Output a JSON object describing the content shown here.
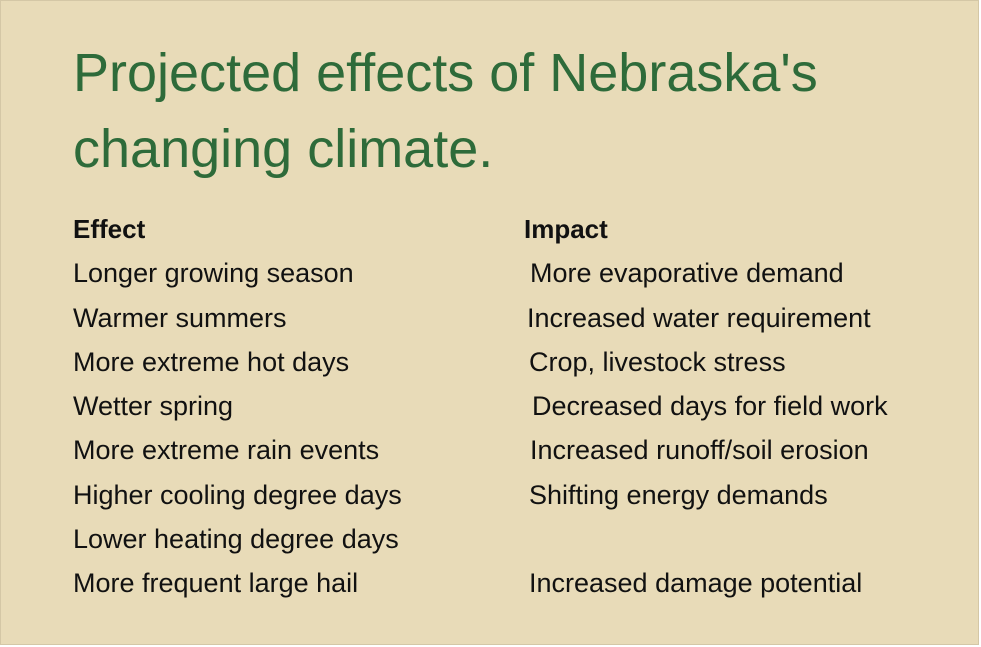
{
  "title": "Projected effects of Nebraska's changing climate.",
  "table": {
    "headers": {
      "effect": "Effect",
      "impact": "Impact"
    },
    "rows": [
      {
        "effect": "Longer growing season",
        "impact": "More evaporative demand"
      },
      {
        "effect": "Warmer summers",
        "impact": "Increased water requirement"
      },
      {
        "effect": "More extreme hot days",
        "impact": "Crop, livestock stress"
      },
      {
        "effect": "Wetter spring",
        "impact": "Decreased days for field work"
      },
      {
        "effect": "More extreme rain events",
        "impact": "Increased runoff/soil erosion"
      },
      {
        "effect": "Higher cooling degree days",
        "impact": "Shifting energy demands"
      },
      {
        "effect": "Lower heating degree days",
        "impact": ""
      },
      {
        "effect": "More frequent large hail",
        "impact": "Increased damage potential"
      }
    ]
  },
  "colors": {
    "background": "#e8dbb8",
    "title": "#2e6b3a",
    "text": "#111111"
  }
}
